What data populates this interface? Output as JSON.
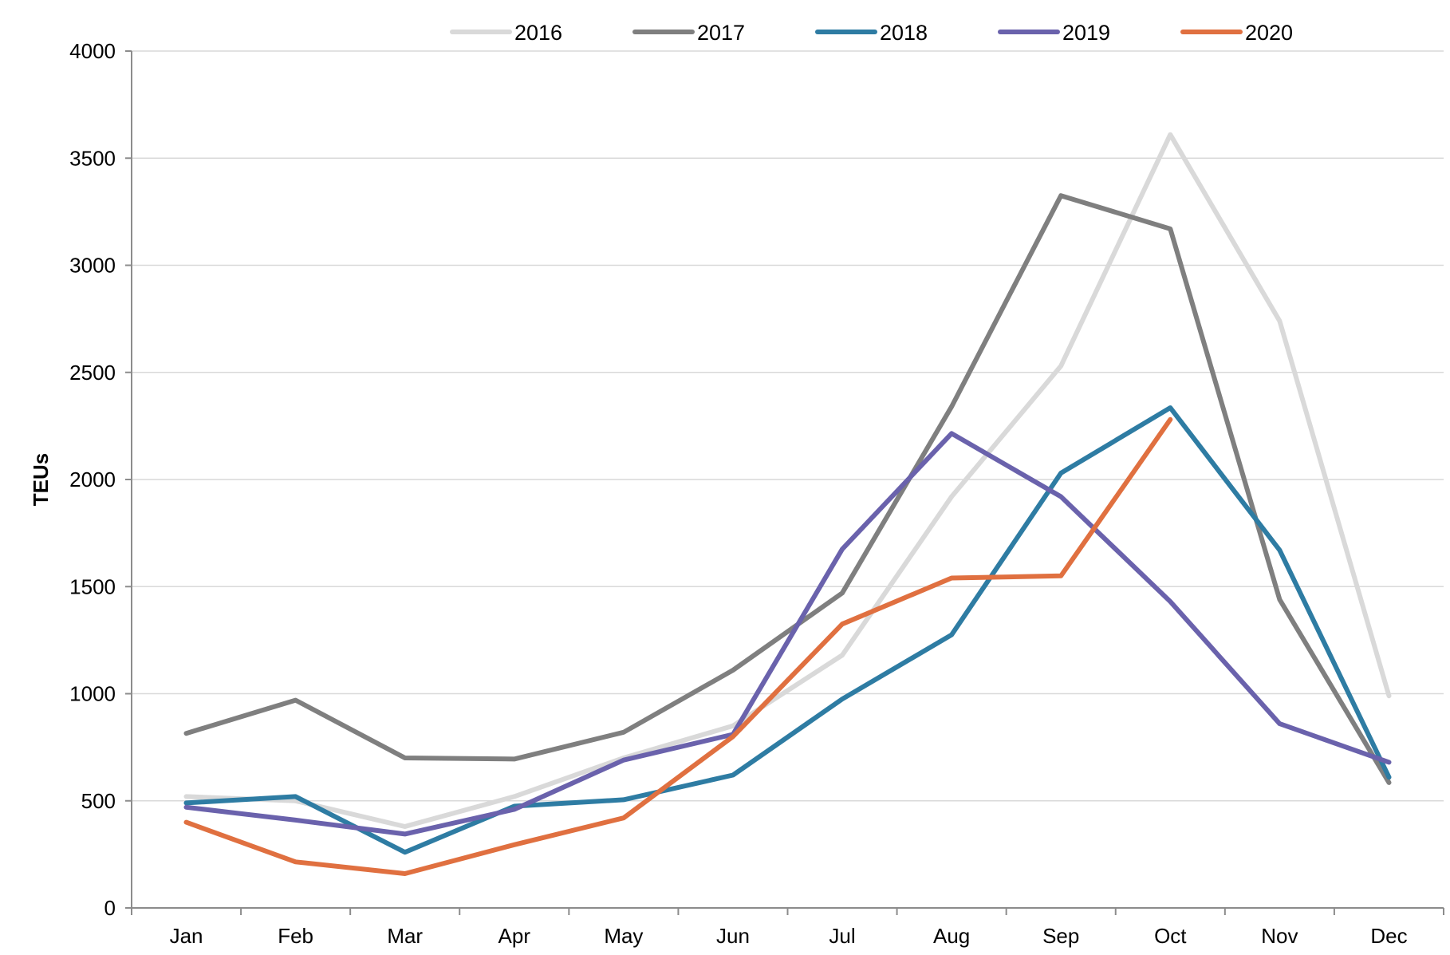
{
  "chart_data": {
    "type": "line",
    "title": "",
    "xlabel": "",
    "ylabel": "TEUs",
    "ylim": [
      0,
      4000
    ],
    "yticks": [
      0,
      500,
      1000,
      1500,
      2000,
      2500,
      3000,
      3500,
      4000
    ],
    "ytick_labels": [
      "0",
      "500",
      "1000",
      "1500",
      "2000",
      "2500",
      "3000",
      "3500",
      "4000"
    ],
    "grid": true,
    "legend_position": "top",
    "categories": [
      "Jan",
      "Feb",
      "Mar",
      "Apr",
      "May",
      "Jun",
      "Jul",
      "Aug",
      "Sep",
      "Oct",
      "Nov",
      "Dec"
    ],
    "series": [
      {
        "name": "2016",
        "color": "#d9d9d9",
        "values": [
          520,
          500,
          380,
          520,
          700,
          850,
          1180,
          1920,
          2530,
          3610,
          2740,
          990
        ]
      },
      {
        "name": "2017",
        "color": "#7f7f7f",
        "values": [
          815,
          970,
          700,
          695,
          820,
          1110,
          1470,
          2340,
          3325,
          3170,
          1440,
          585
        ]
      },
      {
        "name": "2018",
        "color": "#2e7ca3",
        "values": [
          490,
          520,
          260,
          475,
          505,
          620,
          975,
          1275,
          2030,
          2335,
          1670,
          610
        ]
      },
      {
        "name": "2019",
        "color": "#6a62ac",
        "values": [
          470,
          410,
          345,
          460,
          690,
          810,
          1675,
          2215,
          1920,
          1430,
          860,
          680
        ]
      },
      {
        "name": "2020",
        "color": "#e07040",
        "values": [
          400,
          215,
          160,
          295,
          420,
          800,
          1325,
          1540,
          1550,
          2280,
          null,
          null
        ]
      }
    ]
  }
}
